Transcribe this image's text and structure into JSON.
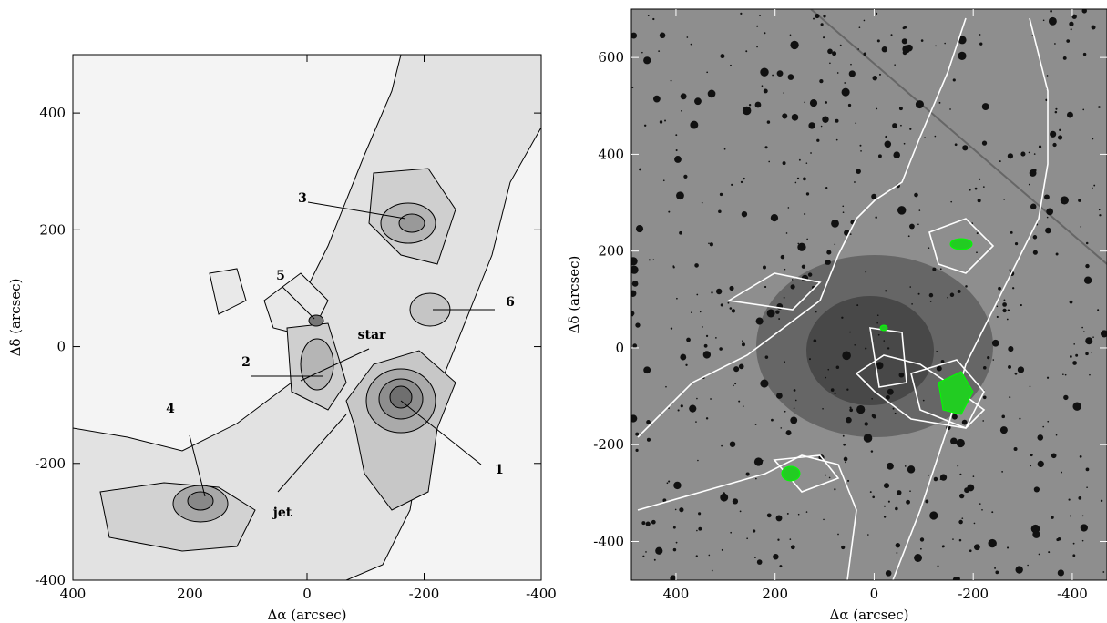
{
  "chart_data": [
    {
      "type": "contour",
      "xlabel": "Δα (arcsec)",
      "ylabel": "Δδ (arcsec)",
      "xlim": [
        400,
        -400
      ],
      "ylim": [
        -400,
        500
      ],
      "xticks": [
        400,
        200,
        0,
        -200,
        -400
      ],
      "yticks": [
        -400,
        -200,
        0,
        200,
        400
      ],
      "annotations": [
        "3",
        "5",
        "2",
        "star",
        "4",
        "jet",
        "1",
        "6"
      ]
    },
    {
      "type": "image",
      "xlabel": "Δα (arcsec)",
      "ylabel": "Δδ (arcsec)",
      "xlim": [
        490,
        -470
      ],
      "ylim": [
        -480,
        700
      ],
      "xticks": [
        400,
        200,
        0,
        -200,
        -400
      ],
      "yticks": [
        -400,
        -200,
        0,
        200,
        400,
        600
      ]
    }
  ]
}
